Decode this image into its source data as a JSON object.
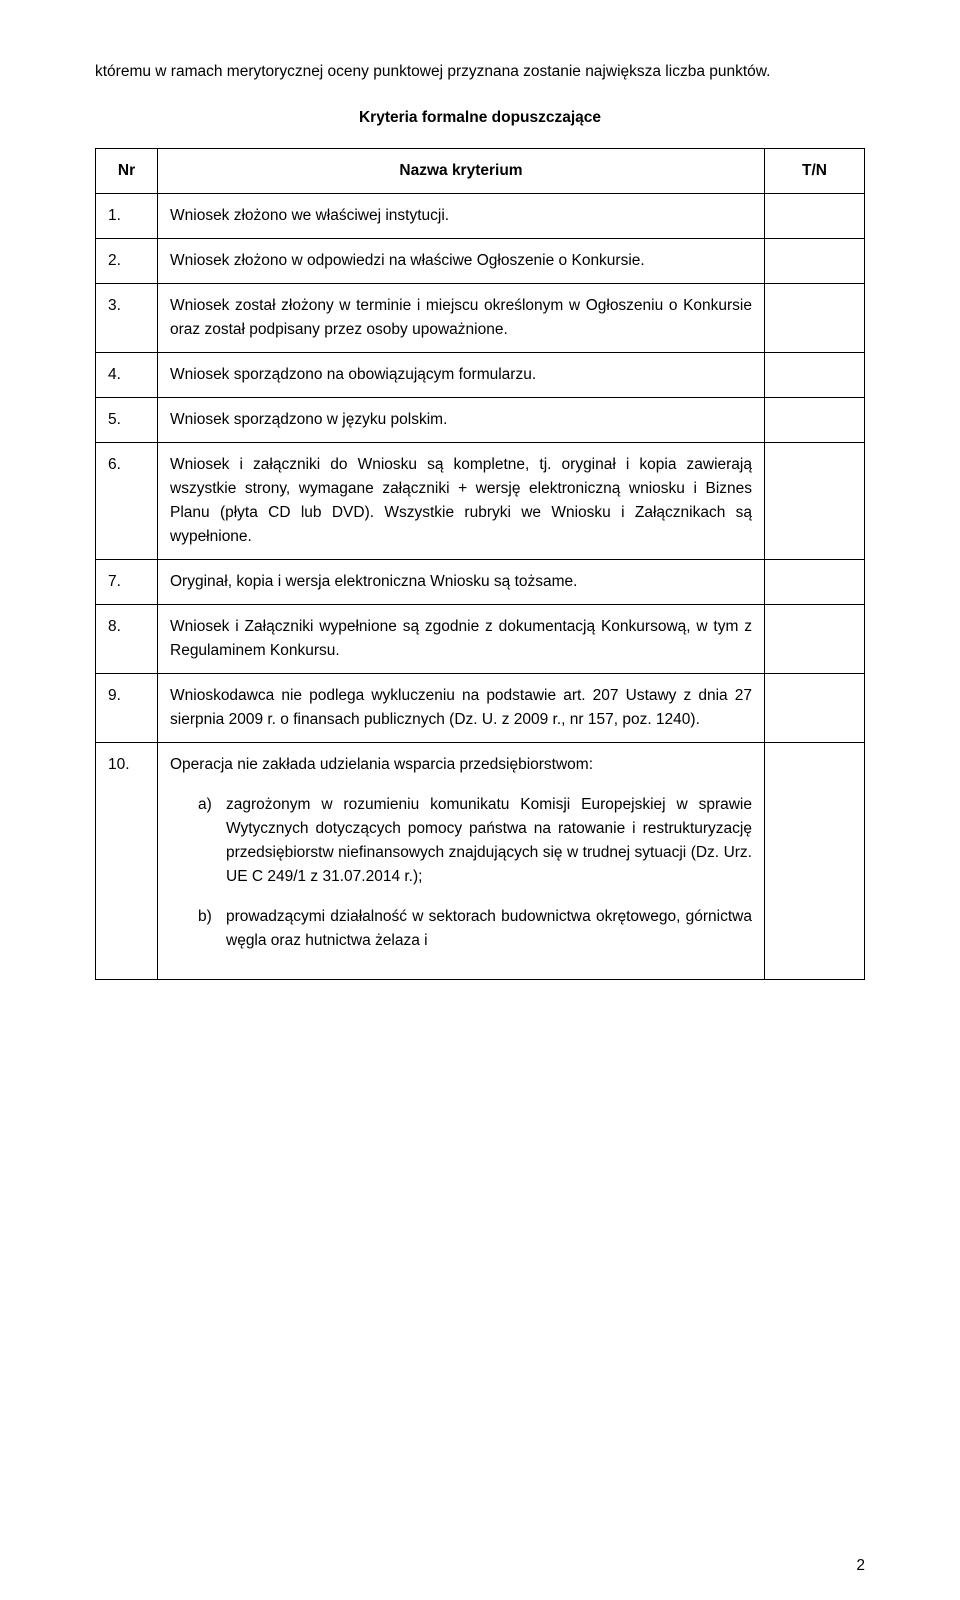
{
  "intro_text": "któremu w ramach merytorycznej oceny punktowej przyznana zostanie największa liczba punktów.",
  "table_title": "Kryteria formalne dopuszczające",
  "headers": {
    "nr": "Nr",
    "name": "Nazwa kryterium",
    "tn": "T/N"
  },
  "rows": [
    {
      "nr": "1.",
      "desc": "Wniosek złożono we właściwej instytucji."
    },
    {
      "nr": "2.",
      "desc": "Wniosek złożono w odpowiedzi na właściwe Ogłoszenie o Konkursie."
    },
    {
      "nr": "3.",
      "desc": "Wniosek został złożony w terminie i miejscu określonym w Ogłoszeniu o Konkursie oraz został podpisany przez osoby upoważnione."
    },
    {
      "nr": "4.",
      "desc": "Wniosek sporządzono na obowiązującym formularzu."
    },
    {
      "nr": "5.",
      "desc": "Wniosek sporządzono w języku polskim."
    },
    {
      "nr": "6.",
      "desc": "Wniosek i załączniki do Wniosku są kompletne, tj. oryginał i kopia zawierają wszystkie strony, wymagane załączniki + wersję elektroniczną wniosku i Biznes Planu (płyta CD lub DVD). Wszystkie rubryki we Wniosku i Załącznikach są wypełnione."
    },
    {
      "nr": "7.",
      "desc": "Oryginał, kopia i wersja elektroniczna Wniosku są tożsame."
    },
    {
      "nr": "8.",
      "desc": "Wniosek i Załączniki wypełnione są zgodnie z dokumentacją Konkursową, w tym z Regulaminem Konkursu."
    },
    {
      "nr": "9.",
      "desc": "Wnioskodawca nie podlega wykluczeniu na podstawie art. 207 Ustawy z dnia 27 sierpnia 2009 r. o finansach publicznych (Dz. U. z 2009 r., nr 157, poz. 1240)."
    },
    {
      "nr": "10.",
      "desc": "Operacja nie zakłada udzielania wsparcia przedsiębiorstwom:",
      "sublist": [
        {
          "marker": "a)",
          "text": "zagrożonym w rozumieniu komunikatu Komisji Europejskiej w sprawie Wytycznych dotyczących pomocy państwa na ratowanie i restrukturyzację przedsiębiorstw niefinansowych znajdujących się w trudnej sytuacji (Dz. Urz. UE C  249/1 z 31.07.2014 r.);"
        },
        {
          "marker": "b)",
          "text": "prowadzącymi działalność w sektorach budownictwa okrętowego, górnictwa węgla oraz hutnictwa żelaza i"
        }
      ]
    }
  ],
  "page_number": "2"
}
